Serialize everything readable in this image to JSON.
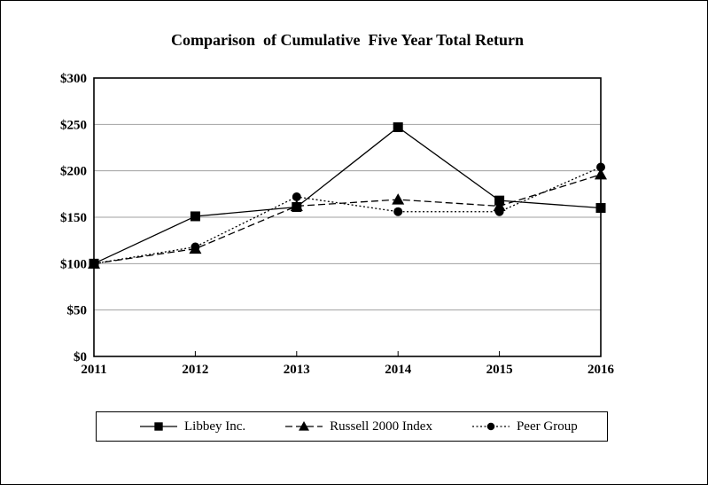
{
  "chart_data": {
    "type": "line",
    "title": "Comparison  of Cumulative  Five Year Total Return",
    "categories": [
      "2011",
      "2012",
      "2013",
      "2014",
      "2015",
      "2016"
    ],
    "series": [
      {
        "name": "Libbey Inc.",
        "values": [
          100,
          151,
          161,
          247,
          168,
          160
        ],
        "line": "solid",
        "marker": "square"
      },
      {
        "name": "Russell 2000 Index",
        "values": [
          100,
          116,
          162,
          169,
          162,
          196
        ],
        "line": "dashed",
        "marker": "triangle"
      },
      {
        "name": "Peer Group",
        "values": [
          100,
          118,
          172,
          156,
          156,
          204
        ],
        "line": "dotted",
        "marker": "circle"
      }
    ],
    "ylim": [
      0,
      300
    ],
    "ytick_step": 50,
    "ytick_labels": [
      "$0",
      "$50",
      "$100",
      "$150",
      "$200",
      "$250",
      "$300"
    ],
    "grid": true,
    "legend_position": "bottom",
    "colors": {
      "line": "#000000",
      "grid": "#a0a0a0",
      "background": "#ffffff",
      "border": "#000000"
    }
  }
}
